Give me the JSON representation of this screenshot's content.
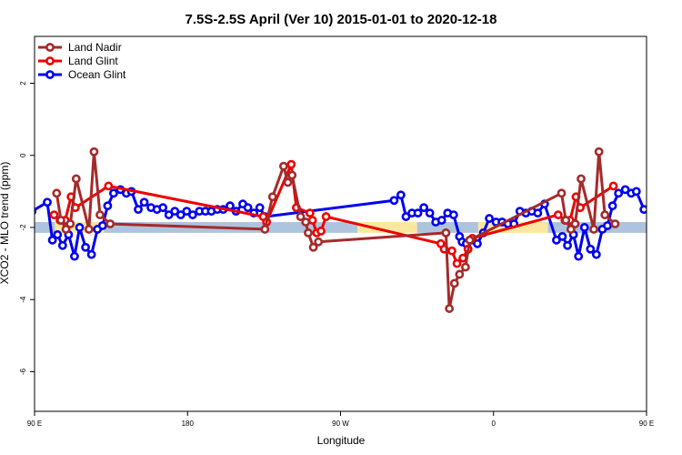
{
  "chart_data": {
    "type": "line",
    "title": "7.5S-2.5S April (Ver 10)   2015-01-01 to 2020-12-18",
    "xlabel": "Longitude",
    "ylabel": "XCO2 - MLO trend (ppm)",
    "xlim": [
      90,
      450
    ],
    "ylim": [
      -7.1,
      3.3
    ],
    "xticks": [
      {
        "value": 90,
        "label": "90 E"
      },
      {
        "value": 180,
        "label": "180"
      },
      {
        "value": 270,
        "label": "90 W"
      },
      {
        "value": 360,
        "label": "0"
      },
      {
        "value": 450,
        "label": "90 E"
      },
      {
        "value": 540,
        "label": "180"
      }
    ],
    "yticks": [
      {
        "value": 2,
        "label": "2"
      },
      {
        "value": 0,
        "label": "0"
      },
      {
        "value": -2,
        "label": "-2"
      },
      {
        "value": -4,
        "label": "-4"
      },
      {
        "value": -6,
        "label": "-6"
      }
    ],
    "legend_position": "top-left",
    "band": {
      "ymin": -2.15,
      "ymax": -1.85,
      "segments": [
        {
          "xmin": 90,
          "xmax": 102,
          "color": "#aec4de"
        },
        {
          "xmin": 102,
          "xmax": 131,
          "color": "#fde7a0"
        },
        {
          "xmin": 131,
          "xmax": 280,
          "color": "#aec4de"
        },
        {
          "xmin": 280,
          "xmax": 315,
          "color": "#fde7a0"
        },
        {
          "xmin": 315,
          "xmax": 351,
          "color": "#aec4de"
        },
        {
          "xmin": 351,
          "xmax": 392,
          "color": "#fde7a0"
        },
        {
          "xmin": 392,
          "xmax": 462,
          "color": "#aec4de"
        },
        {
          "xmin": 462,
          "xmax": 491,
          "color": "#fde7a0"
        },
        {
          "xmin": 491,
          "xmax": 540,
          "color": "#aec4de"
        }
      ]
    },
    "series": [
      {
        "name": "Ocean Glint",
        "color": "#0000ee",
        "points": [
          [
            88.5,
            -1.55
          ],
          [
            97.5,
            -1.3
          ],
          [
            100.5,
            -2.35
          ],
          [
            103.5,
            -2.2
          ],
          [
            106.5,
            -2.5
          ],
          [
            110,
            -2.2
          ],
          [
            113.5,
            -2.8
          ],
          [
            116.5,
            -2.0
          ],
          [
            120,
            -2.55
          ],
          [
            123.5,
            -2.75
          ],
          [
            127,
            -2.05
          ],
          [
            130,
            -1.95
          ],
          [
            133,
            -1.4
          ],
          [
            136.5,
            -1.05
          ],
          [
            140.5,
            -0.95
          ],
          [
            144,
            -1.05
          ],
          [
            147,
            -1.0
          ],
          [
            151,
            -1.5
          ],
          [
            154.5,
            -1.3
          ],
          [
            158.5,
            -1.45
          ],
          [
            162,
            -1.5
          ],
          [
            165.5,
            -1.45
          ],
          [
            169,
            -1.65
          ],
          [
            172.5,
            -1.55
          ],
          [
            176,
            -1.65
          ],
          [
            179.5,
            -1.55
          ],
          [
            183,
            -1.65
          ],
          [
            187,
            -1.55
          ],
          [
            190.5,
            -1.55
          ],
          [
            194,
            -1.55
          ],
          [
            197.5,
            -1.5
          ],
          [
            201,
            -1.5
          ],
          [
            205,
            -1.4
          ],
          [
            208.5,
            -1.55
          ],
          [
            212.5,
            -1.35
          ],
          [
            215.5,
            -1.45
          ],
          [
            219,
            -1.6
          ],
          [
            222.5,
            -1.45
          ],
          [
            225.5,
            -1.7
          ],
          [
            301.5,
            -1.25
          ],
          [
            305.5,
            -1.1
          ],
          [
            308.5,
            -1.7
          ],
          [
            312,
            -1.6
          ],
          [
            315.5,
            -1.6
          ],
          [
            319,
            -1.45
          ],
          [
            322.5,
            -1.6
          ],
          [
            326,
            -1.85
          ],
          [
            329.5,
            -1.8
          ],
          [
            333,
            -1.6
          ],
          [
            336.5,
            -1.65
          ],
          [
            340,
            -2.25
          ],
          [
            341.5,
            -2.4
          ],
          [
            344,
            -2.45
          ],
          [
            347,
            -2.35
          ],
          [
            350.5,
            -2.45
          ],
          [
            354,
            -2.15
          ],
          [
            357.5,
            -1.75
          ],
          [
            361.5,
            -1.85
          ],
          [
            365,
            -1.85
          ],
          [
            368.5,
            -1.9
          ],
          [
            372,
            -1.9
          ],
          [
            375.5,
            -1.55
          ],
          [
            379,
            -1.6
          ],
          [
            382.5,
            -1.55
          ],
          [
            386,
            -1.6
          ],
          [
            390,
            -1.35
          ],
          [
            397,
            -2.35
          ],
          [
            400.5,
            -2.25
          ],
          [
            403.5,
            -2.5
          ],
          [
            407,
            -2.2
          ],
          [
            410,
            -2.8
          ],
          [
            413.5,
            -2.0
          ],
          [
            417,
            -2.6
          ],
          [
            420.5,
            -2.75
          ],
          [
            424,
            -2.05
          ],
          [
            427,
            -1.95
          ],
          [
            430,
            -1.4
          ],
          [
            433.5,
            -1.05
          ],
          [
            437.5,
            -0.95
          ],
          [
            441,
            -1.05
          ],
          [
            444,
            -1.0
          ],
          [
            448.5,
            -1.5
          ]
        ]
      },
      {
        "name": "Land Glint",
        "color": "#ee0000",
        "points": [
          [
            101.5,
            -1.65
          ],
          [
            105,
            -1.8
          ],
          [
            108,
            -1.8
          ],
          [
            111.5,
            -1.15
          ],
          [
            114,
            -1.45
          ],
          [
            133.5,
            -0.85
          ],
          [
            224.5,
            -1.7
          ],
          [
            226.5,
            -1.85
          ],
          [
            241,
            -0.25
          ],
          [
            244,
            -1.45
          ],
          [
            252,
            -1.6
          ],
          [
            253.5,
            -1.8
          ],
          [
            256,
            -2.15
          ],
          [
            258.5,
            -2.1
          ],
          [
            261.5,
            -1.7
          ],
          [
            329,
            -2.45
          ],
          [
            331,
            -2.6
          ],
          [
            335.5,
            -2.65
          ],
          [
            338.5,
            -3.0
          ],
          [
            342,
            -2.85
          ],
          [
            345,
            -2.6
          ],
          [
            347.5,
            -2.3
          ],
          [
            398,
            -1.65
          ],
          [
            402,
            -1.8
          ],
          [
            405,
            -1.8
          ],
          [
            408.5,
            -1.15
          ],
          [
            411,
            -1.45
          ],
          [
            430.5,
            -0.85
          ]
        ]
      },
      {
        "name": "Land Nadir",
        "color": "#a52a2a",
        "points": [
          [
            103,
            -1.05
          ],
          [
            105.5,
            -1.8
          ],
          [
            108.5,
            -2.05
          ],
          [
            111,
            -1.9
          ],
          [
            114.5,
            -0.65
          ],
          [
            122,
            -2.05
          ],
          [
            125,
            0.1
          ],
          [
            128.5,
            -1.65
          ],
          [
            134.5,
            -1.9
          ],
          [
            225.5,
            -2.05
          ],
          [
            230,
            -1.15
          ],
          [
            236.5,
            -0.3
          ],
          [
            239,
            -0.75
          ],
          [
            241.5,
            -0.55
          ],
          [
            246.5,
            -1.7
          ],
          [
            249.5,
            -1.85
          ],
          [
            251,
            -2.15
          ],
          [
            254,
            -2.55
          ],
          [
            257,
            -2.4
          ],
          [
            332,
            -2.15
          ],
          [
            334,
            -4.25
          ],
          [
            337,
            -3.55
          ],
          [
            340,
            -3.3
          ],
          [
            343.5,
            -3.1
          ],
          [
            346,
            -2.35
          ],
          [
            400,
            -1.05
          ],
          [
            402.5,
            -1.8
          ],
          [
            405.5,
            -2.05
          ],
          [
            408,
            -1.9
          ],
          [
            411.5,
            -0.65
          ],
          [
            419,
            -2.05
          ],
          [
            422,
            0.1
          ],
          [
            425.5,
            -1.65
          ],
          [
            431.5,
            -1.9
          ]
        ]
      }
    ],
    "legend": [
      {
        "label": "Land Nadir",
        "color": "#a52a2a"
      },
      {
        "label": "Land Glint",
        "color": "#ee0000"
      },
      {
        "label": "Ocean Glint",
        "color": "#0000ee"
      }
    ]
  }
}
